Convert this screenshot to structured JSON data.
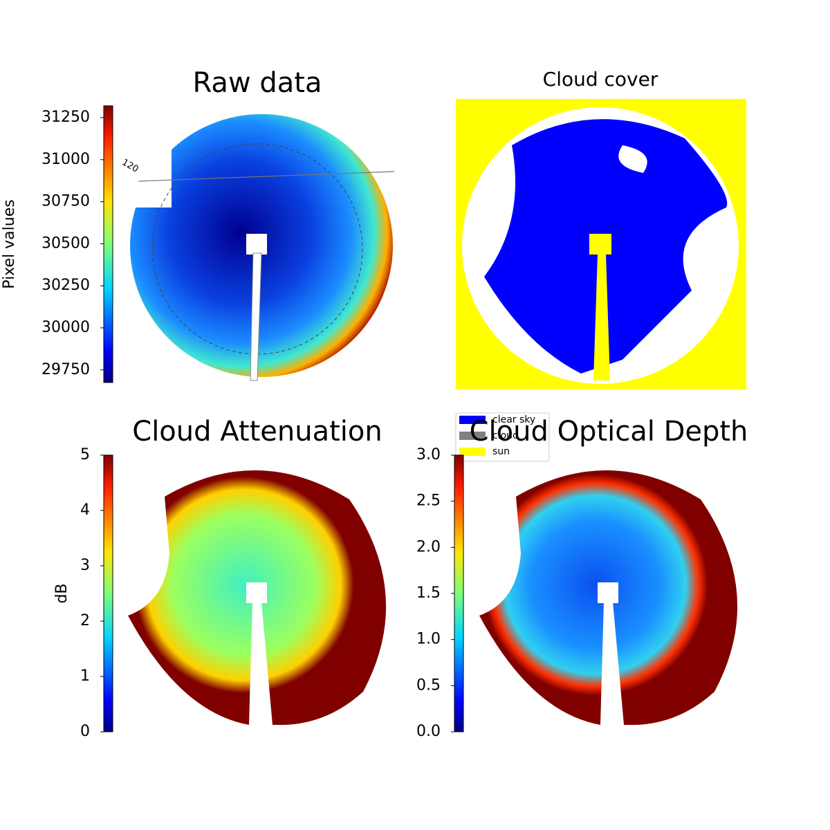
{
  "chart_data": [
    {
      "type": "image",
      "title": "Raw data",
      "colorbar_label": "Pixel values",
      "colormap": "jet",
      "ylim": [
        29675,
        31320
      ],
      "yticks": [
        29750,
        30000,
        30250,
        30500,
        30750,
        31000,
        31250
      ],
      "annotations": [
        "120"
      ]
    },
    {
      "type": "image",
      "title": "Cloud cover",
      "series": [
        {
          "name": "clear sky",
          "color": "#0000ff"
        },
        {
          "name": "cloud",
          "color": "#808080"
        },
        {
          "name": "sun",
          "color": "#ffff00"
        }
      ]
    },
    {
      "type": "image",
      "title": "Cloud Attenuation",
      "colorbar_label": "dB",
      "colormap": "jet",
      "ylim": [
        0,
        5
      ],
      "yticks": [
        0,
        1,
        2,
        3,
        4,
        5
      ]
    },
    {
      "type": "image",
      "title": "Cloud Optical Depth",
      "colormap": "jet",
      "ylim": [
        0,
        3
      ],
      "yticks": [
        {
          "value": 0,
          "label": "0.0"
        },
        0.5,
        {
          "value": 1,
          "label": "1.0"
        },
        1.5,
        {
          "value": 2,
          "label": "2.0"
        },
        2.5,
        {
          "value": 3,
          "label": "3.0"
        }
      ]
    }
  ]
}
